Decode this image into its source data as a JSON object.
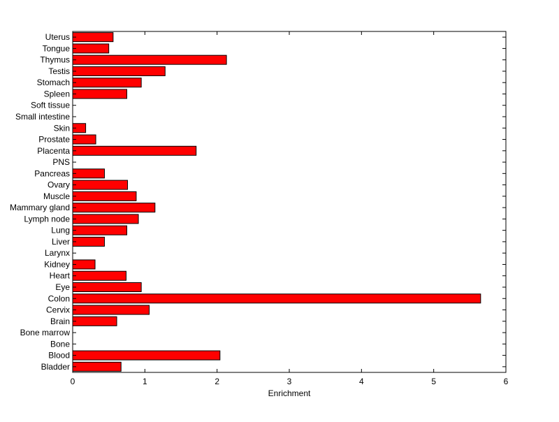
{
  "chart_data": {
    "type": "bar",
    "orientation": "horizontal",
    "title": "",
    "xlabel": "Enrichment",
    "ylabel": "",
    "xlim": [
      0,
      6
    ],
    "xticks": [
      0,
      1,
      2,
      3,
      4,
      5,
      6
    ],
    "grid": false,
    "bar_color": "#ff0000",
    "bar_edge_color": "#000000",
    "categories": [
      "Bladder",
      "Blood",
      "Bone",
      "Bone marrow",
      "Brain",
      "Cervix",
      "Colon",
      "Eye",
      "Heart",
      "Kidney",
      "Larynx",
      "Liver",
      "Lung",
      "Lymph node",
      "Mammary gland",
      "Muscle",
      "Ovary",
      "Pancreas",
      "PNS",
      "Placenta",
      "Prostate",
      "Skin",
      "Small intestine",
      "Soft tissue",
      "Spleen",
      "Stomach",
      "Testis",
      "Thymus",
      "Tongue",
      "Uterus"
    ],
    "values": [
      0.67,
      2.04,
      0,
      0,
      0.61,
      1.06,
      5.65,
      0.95,
      0.74,
      0.31,
      0,
      0.44,
      0.75,
      0.91,
      1.14,
      0.88,
      0.76,
      0.44,
      0,
      1.71,
      0.32,
      0.18,
      0,
      0,
      0.75,
      0.95,
      1.28,
      2.13,
      0.5,
      0.56
    ]
  }
}
